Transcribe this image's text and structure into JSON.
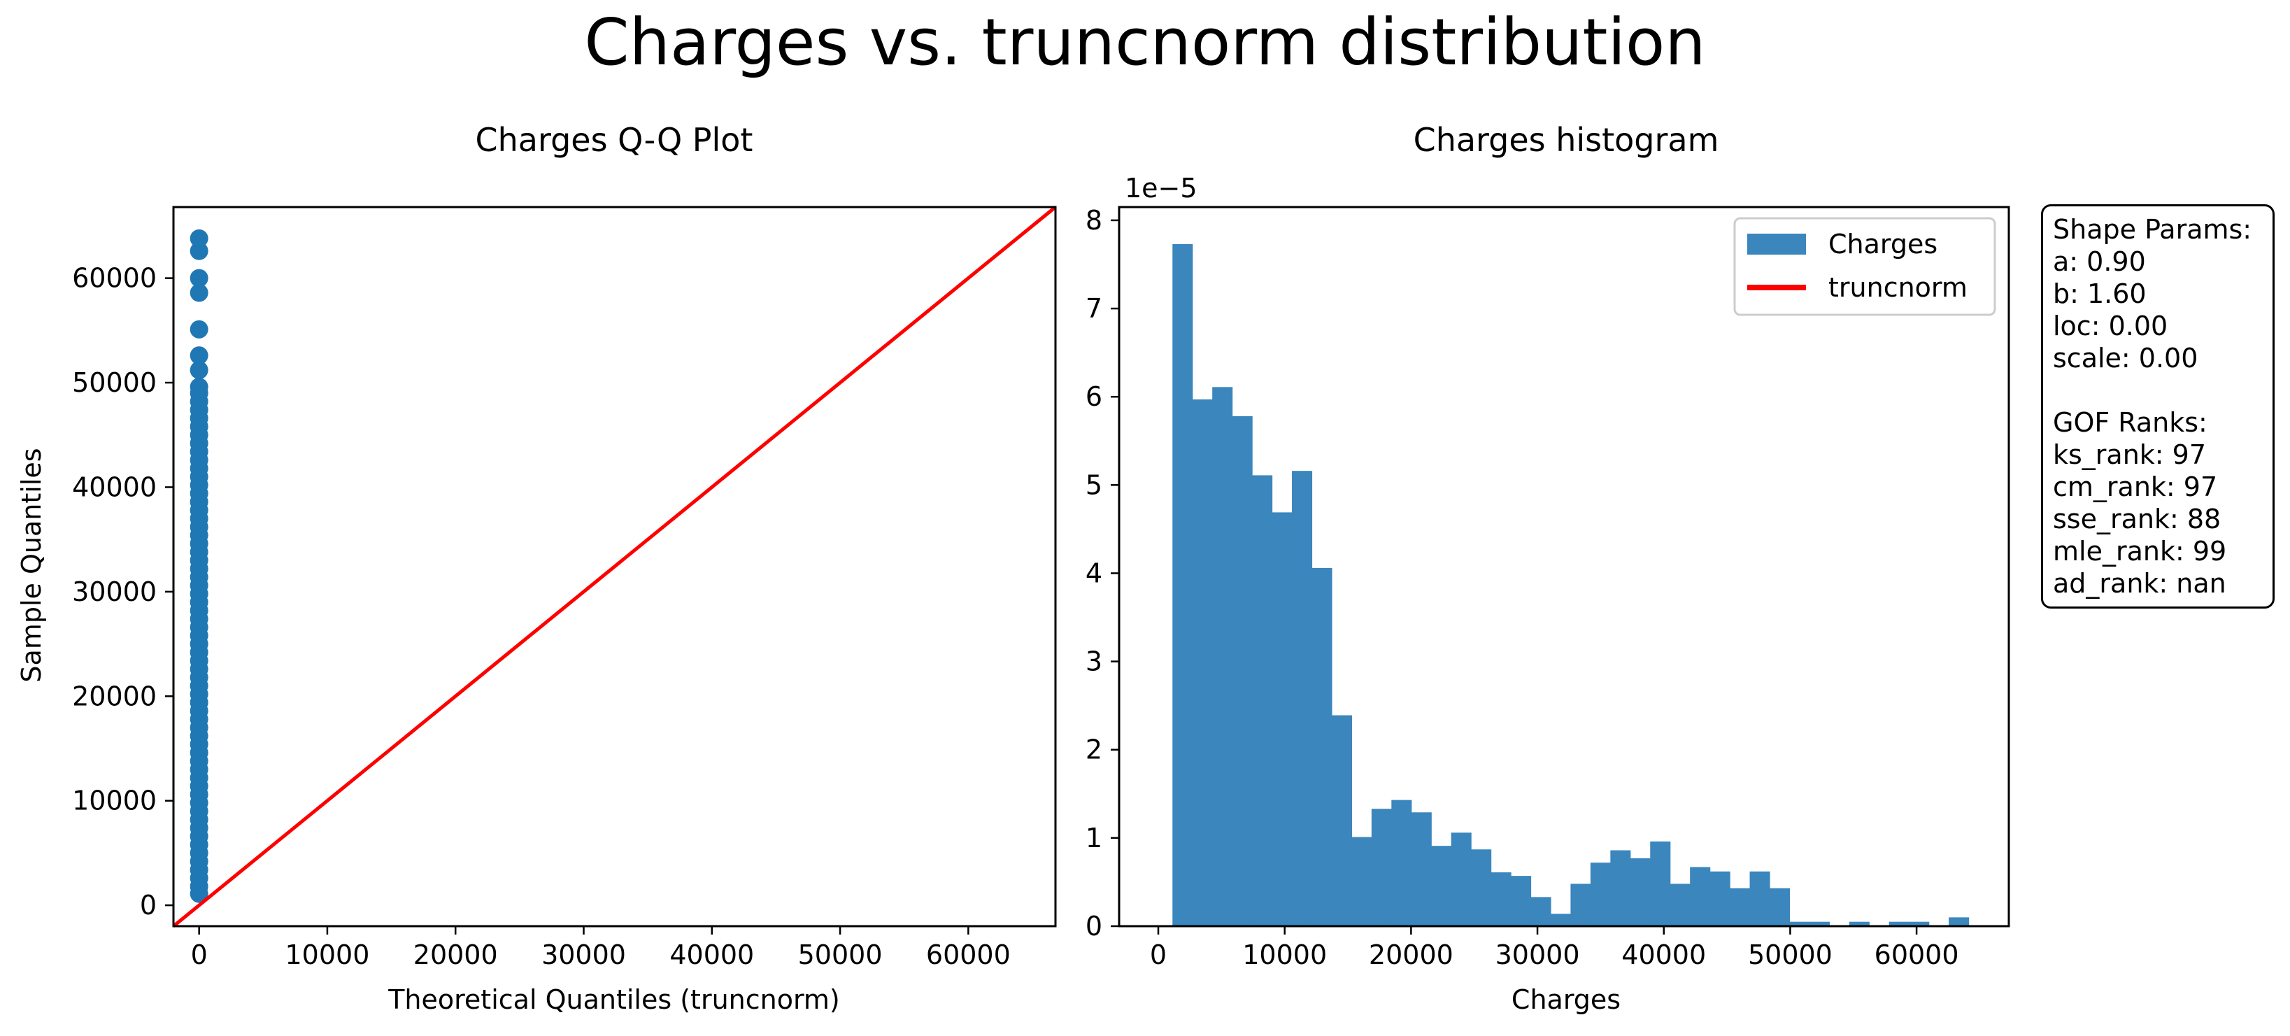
{
  "suptitle": "Charges vs. truncnorm distribution",
  "chart_data": [
    {
      "type": "scatter",
      "title": "Charges Q-Q Plot",
      "xlabel": "Theoretical Quantiles (truncnorm)",
      "ylabel": "Sample Quantiles",
      "xlim": [
        -2000,
        66800
      ],
      "ylim": [
        -2000,
        66800
      ],
      "xticks": [
        0,
        10000,
        20000,
        30000,
        40000,
        50000,
        60000
      ],
      "yticks": [
        0,
        10000,
        20000,
        30000,
        40000,
        50000,
        60000
      ],
      "xtick_labels": [
        "0",
        "10000",
        "20000",
        "30000",
        "40000",
        "50000",
        "60000"
      ],
      "ytick_labels": [
        "0",
        "10000",
        "20000",
        "30000",
        "40000",
        "50000",
        "60000"
      ],
      "point_color": "#1f77b4",
      "line_color": "#ff0000",
      "points": {
        "x": [
          0,
          0,
          0,
          0,
          0,
          0,
          0,
          0,
          0,
          0,
          0,
          0,
          0,
          0,
          0,
          0,
          0,
          0,
          0,
          0,
          0,
          0,
          0,
          0,
          0,
          0,
          0,
          0,
          0,
          0,
          0,
          0,
          0,
          0,
          0,
          0,
          0,
          0,
          0,
          0,
          0,
          0,
          0,
          0,
          0,
          0,
          0,
          0,
          0,
          0,
          0,
          0,
          0,
          0,
          0,
          0,
          0,
          0,
          0,
          0
        ],
        "y": [
          1100,
          1800,
          2600,
          3400,
          4200,
          5000,
          5800,
          6600,
          7400,
          8200,
          9000,
          9800,
          10600,
          11400,
          12200,
          13000,
          13800,
          14600,
          15400,
          16200,
          17000,
          17800,
          18600,
          19400,
          20200,
          21000,
          21800,
          22600,
          23400,
          24200,
          25000,
          25800,
          26600,
          27400,
          28200,
          29000,
          29800,
          30600,
          31400,
          32200,
          33000,
          33800,
          34600,
          35400,
          36200,
          37000,
          37800,
          38600,
          39400,
          40200,
          41000,
          41800,
          42600,
          43400,
          44200,
          45000,
          45800,
          46600,
          47400,
          48200
        ]
      },
      "extra_points_y": [
        49000,
        49600,
        51200,
        52600,
        55100,
        58600,
        60000,
        62600,
        63800
      ],
      "reference_line": {
        "x": [
          -2000,
          66800
        ],
        "y": [
          -2000,
          66800
        ]
      }
    },
    {
      "type": "bar",
      "title": "Charges histogram",
      "xlabel": "Charges",
      "ylabel": "",
      "offset_text": "1e−5",
      "xlim": [
        -3100,
        67300
      ],
      "ylim": [
        0,
        8.15
      ],
      "xticks": [
        0,
        10000,
        20000,
        30000,
        40000,
        50000,
        60000
      ],
      "xtick_labels": [
        "0",
        "10000",
        "20000",
        "30000",
        "40000",
        "50000",
        "60000"
      ],
      "yticks": [
        0,
        1,
        2,
        3,
        4,
        5,
        6,
        7,
        8
      ],
      "ytick_labels": [
        "0",
        "1",
        "2",
        "3",
        "4",
        "5",
        "6",
        "7",
        "8"
      ],
      "bin_start": 1122,
      "bin_width": 1575,
      "values": [
        7.73,
        5.97,
        6.11,
        5.78,
        5.11,
        4.69,
        5.16,
        4.06,
        2.39,
        1.01,
        1.33,
        1.43,
        1.29,
        0.91,
        1.06,
        0.87,
        0.61,
        0.57,
        0.33,
        0.14,
        0.48,
        0.72,
        0.86,
        0.77,
        0.96,
        0.48,
        0.67,
        0.62,
        0.43,
        0.62,
        0.43,
        0.05,
        0.05,
        0.0,
        0.05,
        0.0,
        0.05,
        0.05,
        0.0,
        0.1
      ],
      "bar_color": "#3a86bd",
      "legend": {
        "position": "top-right",
        "entries": [
          {
            "label": "Charges",
            "color": "#3a86bd",
            "kind": "patch"
          },
          {
            "label": "truncnorm",
            "color": "#ff0000",
            "kind": "line"
          }
        ]
      }
    }
  ],
  "stats_box": {
    "lines": [
      "Shape Params:",
      "a: 0.90",
      "b: 1.60",
      "loc: 0.00",
      "scale: 0.00",
      "",
      "GOF Ranks:",
      "ks_rank: 97",
      "cm_rank: 97",
      "sse_rank: 88",
      "mle_rank: 99",
      "ad_rank: nan"
    ]
  }
}
